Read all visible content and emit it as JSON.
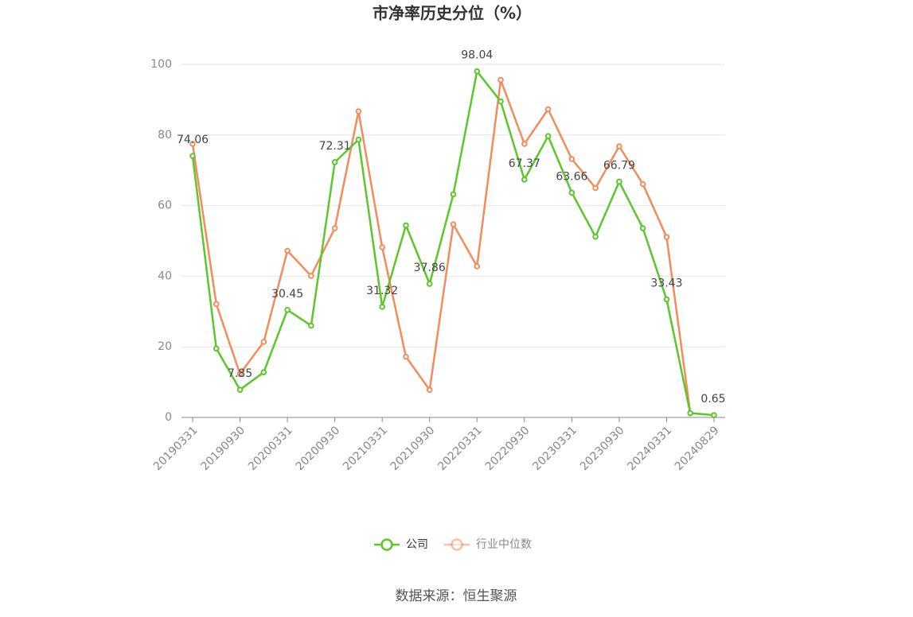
{
  "chart_data": {
    "type": "line",
    "title": "市净率历史分位（%）",
    "categories": [
      "20190331",
      null,
      "20190930",
      null,
      "20200331",
      null,
      "20200930",
      null,
      "20210331",
      null,
      "20210930",
      null,
      "20220331",
      null,
      "20220930",
      null,
      "20230331",
      null,
      "20230930",
      null,
      "20240331",
      null,
      "20240829"
    ],
    "series": [
      {
        "name": "公司",
        "color": "#5cc72c",
        "values": [
          74.06,
          19.5,
          7.85,
          12.8,
          30.45,
          26.0,
          72.31,
          78.7,
          31.32,
          54.4,
          37.86,
          63.2,
          98.04,
          89.5,
          67.37,
          79.7,
          63.66,
          51.2,
          66.79,
          53.6,
          33.43,
          1.2,
          0.65
        ]
      },
      {
        "name": "行业中位数",
        "color": "#f28c5a",
        "values": [
          77.5,
          32.1,
          12.3,
          21.4,
          47.2,
          40.1,
          53.6,
          86.7,
          48.2,
          17.2,
          7.8,
          54.7,
          42.8,
          95.6,
          77.5,
          87.3,
          73.2,
          65.0,
          76.8,
          66.1,
          51.1,
          1.2,
          null
        ]
      }
    ],
    "ylim": [
      0,
      100
    ],
    "yticks": [
      0,
      20,
      40,
      60,
      80,
      100
    ],
    "grid": true,
    "source": "数据来源：恒生聚源"
  }
}
